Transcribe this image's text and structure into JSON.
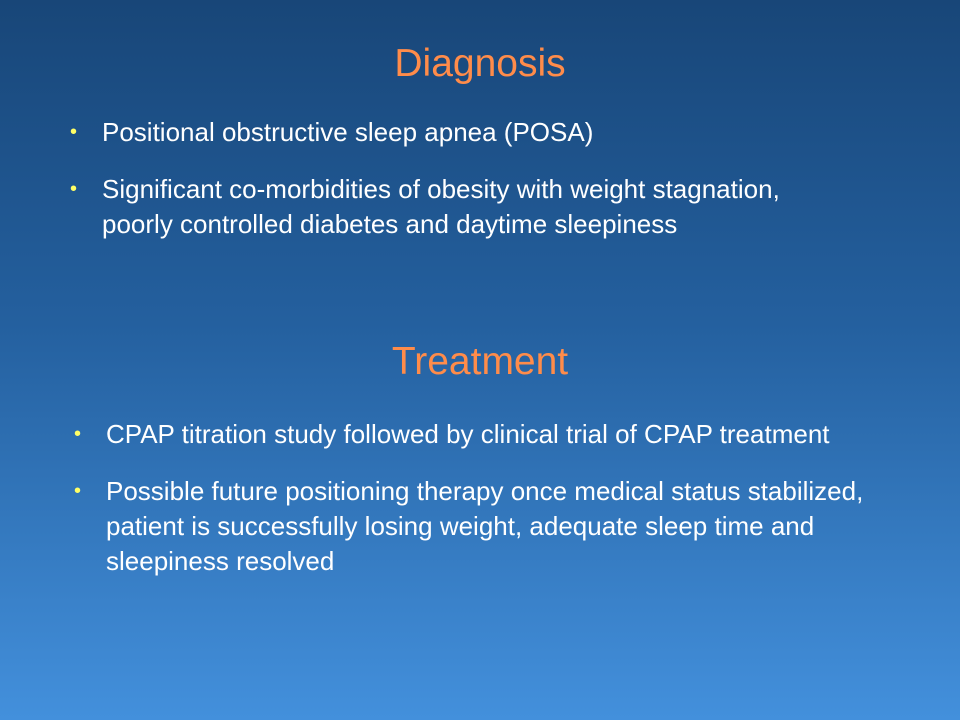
{
  "sections": [
    {
      "title": "Diagnosis",
      "bullets": [
        "Positional obstructive sleep apnea (POSA)",
        "Significant co-morbidities of obesity with weight stagnation, poorly controlled diabetes and daytime sleepiness"
      ]
    },
    {
      "title": "Treatment",
      "bullets": [
        "CPAP titration study followed by clinical trial of CPAP treatment",
        "Possible future positioning therapy once medical status stabilized, patient is successfully losing weight, adequate sleep time and sleepiness resolved"
      ]
    }
  ],
  "colors": {
    "title": "#ff8c4a",
    "bullet": "#ffff66",
    "bg_top": "#184678",
    "bg_bottom": "#4390dc"
  }
}
